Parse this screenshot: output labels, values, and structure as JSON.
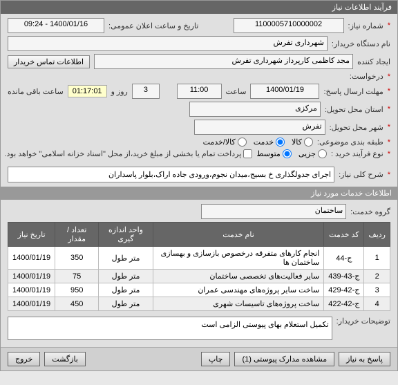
{
  "title": "فرآیند اطلاعات نیاز",
  "f": {
    "need_no_lbl": "شماره نیاز:",
    "need_no": "1100005710000002",
    "pub_date_lbl": "تاریخ و ساعت اعلان عمومی:",
    "pub_date": "1400/01/16 - 09:24",
    "buyer_dev_lbl": "نام دستگاه خریدار:",
    "buyer_dev": "شهرداری تفرش",
    "creator_lbl": "ایجاد کننده",
    "creator": "مجد کاظمی کارپرداز شهرداری تفرش",
    "buyer_contact_btn": "اطلاعات تماس خریدار",
    "request_lbl": "درخواست:",
    "deadline_lbl": "مهلت ارسال پاسخ:",
    "deadline_date": "1400/01/19",
    "time_lbl": "ساعت",
    "deadline_time": "11:00",
    "days": "3",
    "days_lbl": "روز و",
    "timer": "01:17:01",
    "remain_lbl": "ساعت باقی مانده",
    "delivery_prov_lbl": "استان محل تحویل:",
    "delivery_prov": "مرکزی",
    "delivery_city_lbl": "شهر محل تحویل:",
    "delivery_city": "تفرش",
    "subject_cat_lbl": "طبقه بندی موضوعی:",
    "cat_goods": "کالا",
    "cat_service": "خدمت",
    "cat_both": "کالا/خدمت",
    "purchase_type_lbl": "نوع فرآیند خرید  :",
    "pt_small": "جزیی",
    "pt_medium": "متوسط",
    "pt_note": "پرداخت تمام یا بخشی از مبلغ خرید،از محل \"اسناد خزانه اسلامی\" خواهد بود.",
    "need_title_lbl": "شرح کلی نیاز:",
    "need_title": "اجرای جدولگذاری خ بسیج،میدان نجوم،ورودی جاده اراک،بلوار پاسداران"
  },
  "services_section": "اطلاعات خدمات مورد نیاز",
  "svc_group_lbl": "گروه خدمت:",
  "svc_group": "ساختمان",
  "table": {
    "h_row": "ردیف",
    "h_code": "کد خدمت",
    "h_name": "نام خدمت",
    "h_unit": "واحد اندازه گیری",
    "h_qty": "تعداد / مقدار",
    "h_date": "تاریخ نیاز",
    "rows": [
      {
        "n": "1",
        "code": "ج-44",
        "name": "انجام کارهای متفرقه درخصوص بازسازی و بهسازی ساختمان ها",
        "unit": "متر طول",
        "qty": "350",
        "date": "1400/01/19"
      },
      {
        "n": "2",
        "code": "ج-43-439",
        "name": "سایر فعالیت‌های تخصصی ساختمان",
        "unit": "متر طول",
        "qty": "75",
        "date": "1400/01/19"
      },
      {
        "n": "3",
        "code": "ج-42-429",
        "name": "ساخت سایر پروژه‌های مهندسی عمران",
        "unit": "متر طول",
        "qty": "950",
        "date": "1400/01/19"
      },
      {
        "n": "4",
        "code": "ج-42-422",
        "name": "ساخت پروژه‌های تاسیسات شهری",
        "unit": "متر طول",
        "qty": "450",
        "date": "1400/01/19"
      }
    ]
  },
  "buyer_desc_lbl": "توضیحات خریدار:",
  "buyer_desc": "تکمیل استعلام بهای پیوستی الزامی است",
  "footer": {
    "reply": "پاسخ به نیاز",
    "attach": "مشاهده مدارک پیوستی (1)",
    "print": "چاپ",
    "back": "بازگشت",
    "exit": "خروج"
  }
}
